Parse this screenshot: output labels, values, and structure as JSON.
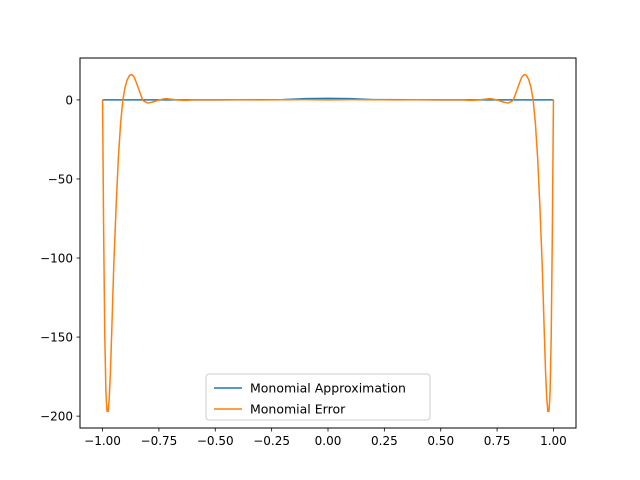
{
  "chart_data": {
    "type": "line",
    "title": "",
    "xlabel": "",
    "ylabel": "",
    "xlim": [
      -1.1,
      1.1
    ],
    "ylim": [
      -207.5,
      26.5
    ],
    "xticks": [
      -1.0,
      -0.75,
      -0.5,
      -0.25,
      0.0,
      0.25,
      0.5,
      0.75,
      1.0
    ],
    "xtick_labels": [
      "−1.00",
      "−0.75",
      "−0.50",
      "−0.25",
      "0.00",
      "0.25",
      "0.50",
      "0.75",
      "1.00"
    ],
    "yticks": [
      0,
      -50,
      -100,
      -150,
      -200
    ],
    "ytick_labels": [
      "0",
      "−50",
      "−100",
      "−150",
      "−200"
    ],
    "grid": false,
    "legend_position": "lower center",
    "series": [
      {
        "name": "Monomial Approximation",
        "color": "#1f77b4",
        "x": [
          -1.0,
          -0.5,
          -0.2,
          -0.1,
          0.0,
          0.1,
          0.2,
          0.5,
          1.0
        ],
        "y": [
          0.0,
          0.0,
          0.2,
          0.8,
          1.0,
          0.8,
          0.2,
          0.0,
          0.0
        ]
      },
      {
        "name": "Monomial Error",
        "color": "#ff7f0e",
        "x": [
          -1.0,
          -0.995,
          -0.99,
          -0.985,
          -0.98,
          -0.975,
          -0.97,
          -0.965,
          -0.96,
          -0.955,
          -0.95,
          -0.94,
          -0.93,
          -0.92,
          -0.91,
          -0.9,
          -0.89,
          -0.88,
          -0.87,
          -0.86,
          -0.85,
          -0.84,
          -0.83,
          -0.82,
          -0.8,
          -0.78,
          -0.76,
          -0.74,
          -0.72,
          -0.7,
          -0.68,
          -0.66,
          -0.64,
          -0.62,
          -0.6,
          -0.55,
          -0.5,
          -0.4,
          -0.3,
          -0.2,
          -0.1,
          0.0,
          0.1,
          0.2,
          0.3,
          0.4,
          0.5,
          0.55,
          0.6,
          0.62,
          0.64,
          0.66,
          0.68,
          0.7,
          0.72,
          0.74,
          0.76,
          0.78,
          0.8,
          0.82,
          0.83,
          0.84,
          0.85,
          0.86,
          0.87,
          0.88,
          0.89,
          0.9,
          0.91,
          0.92,
          0.93,
          0.94,
          0.95,
          0.955,
          0.96,
          0.965,
          0.97,
          0.975,
          0.98,
          0.985,
          0.99,
          0.995,
          1.0
        ],
        "y": [
          0,
          -85,
          -150,
          -185,
          -197,
          -197,
          -188,
          -172,
          -150,
          -127,
          -104,
          -68,
          -37,
          -15,
          0,
          8,
          13,
          15.5,
          16,
          14.5,
          11,
          7,
          3,
          -0.5,
          -2,
          -1.5,
          -0.5,
          0.3,
          0.8,
          0.5,
          0.2,
          -0.1,
          -0.3,
          -0.2,
          0.0,
          0.1,
          0.0,
          0.1,
          0.0,
          0.1,
          0.2,
          0.0,
          0.2,
          0.1,
          0.0,
          0.1,
          0.0,
          0.1,
          0.0,
          -0.2,
          -0.3,
          -0.1,
          0.2,
          0.5,
          0.8,
          0.3,
          -0.5,
          -1.5,
          -2,
          -0.5,
          3,
          7,
          11,
          14.5,
          16,
          15.5,
          13,
          8,
          0,
          -15,
          -37,
          -68,
          -104,
          -127,
          -150,
          -172,
          -188,
          -197,
          -197,
          -185,
          -150,
          -85,
          0
        ]
      }
    ]
  }
}
